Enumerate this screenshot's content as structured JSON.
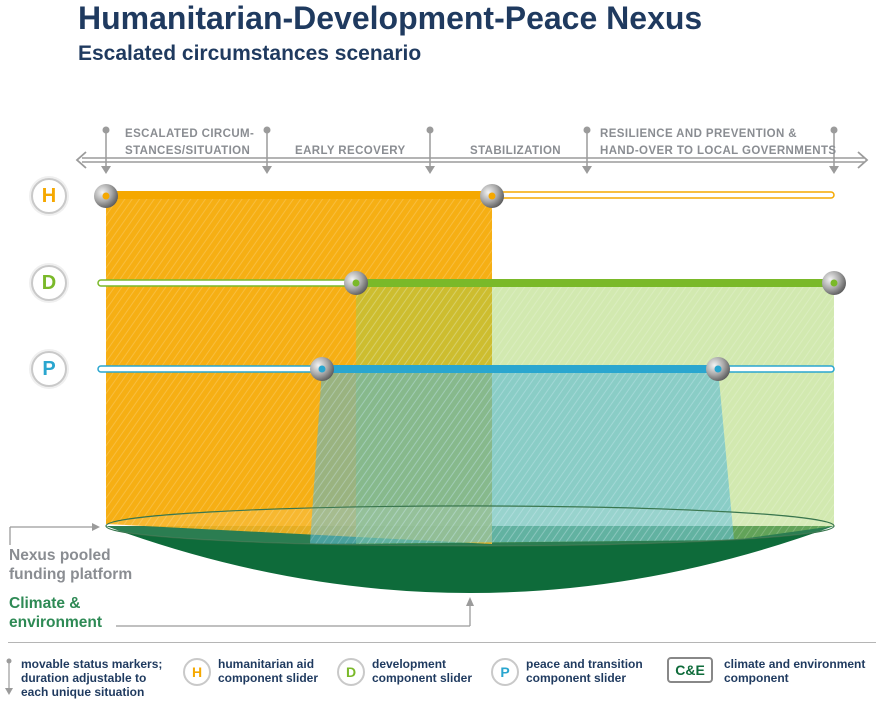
{
  "title": "Humanitarian-Development-Peace Nexus",
  "subtitle": "Escalated circumstances scenario",
  "timeline": {
    "phases": [
      {
        "line1": "ESCALATED CIRCUM-",
        "line2": "STANCES/SITUATION"
      },
      {
        "line1": "EARLY RECOVERY",
        "line2": ""
      },
      {
        "line1": "STABILIZATION",
        "line2": ""
      },
      {
        "line1": "RESILIENCE AND PREVENTION &",
        "line2": "HAND-OVER TO LOCAL GOVERNMENTS"
      }
    ]
  },
  "components": [
    {
      "letter": "H",
      "color": "#f5a800",
      "name": "humanitarian aid",
      "start_fraction": 0.0,
      "end_fraction": 0.53
    },
    {
      "letter": "D",
      "color": "#7ab929",
      "name": "development",
      "start_fraction": 0.34,
      "end_fraction": 1.0
    },
    {
      "letter": "P",
      "color": "#2aa6cf",
      "name": "peace and transition",
      "start_fraction": 0.3,
      "end_fraction": 0.84
    }
  ],
  "platform": {
    "pooled_label": "Nexus pooled funding platform",
    "pooled_line1": "Nexus pooled",
    "pooled_line2": "funding platform",
    "climate_line1": "Climate &",
    "climate_line2": "environment",
    "climate_color": "#0e6b3a"
  },
  "legend": {
    "markers_line1": "movable status markers;",
    "markers_line2": "duration adjustable to",
    "markers_line3": "each unique situation",
    "h_letter": "H",
    "h_line1": "humanitarian aid",
    "h_line2": "component slider",
    "d_letter": "D",
    "d_line1": "development",
    "d_line2": "component slider",
    "p_letter": "P",
    "p_line1": "peace and transition",
    "p_line2": "component slider",
    "ce_badge": "C&E",
    "ce_line1": "climate and environment",
    "ce_line2": "component"
  }
}
